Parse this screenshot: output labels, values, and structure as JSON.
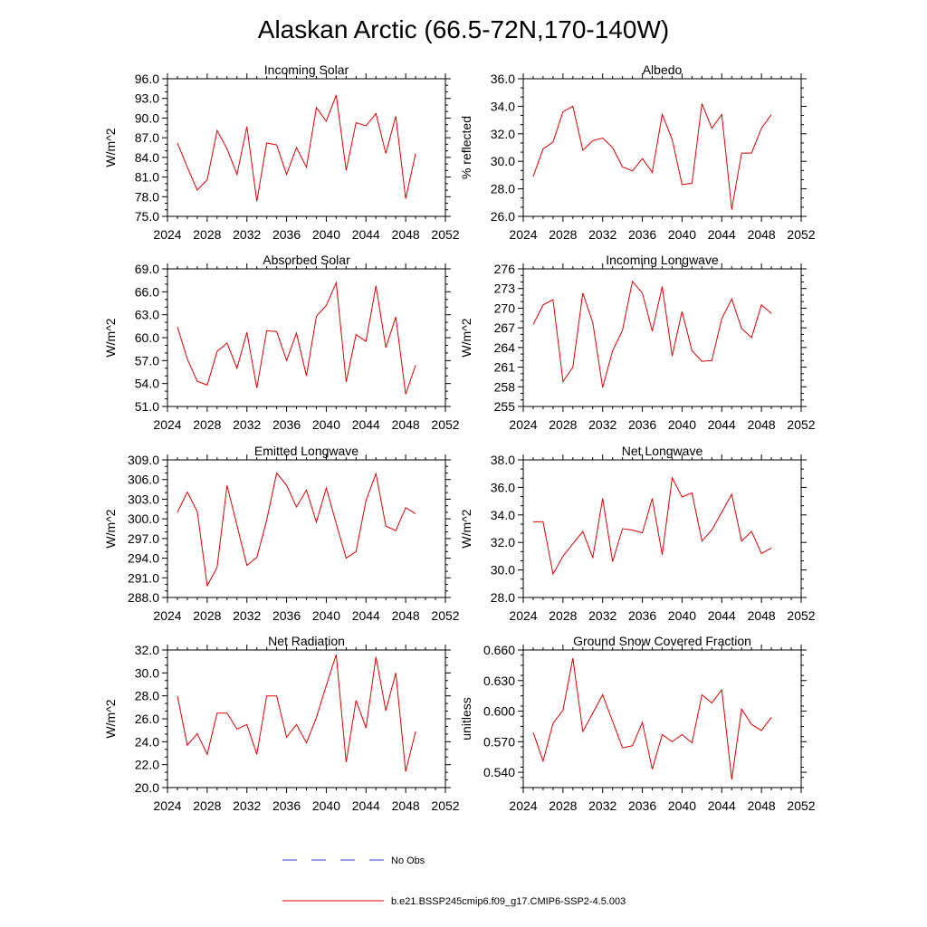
{
  "page": {
    "title": "Alaskan Arctic (66.5-72N,170-140W)"
  },
  "legend": [
    {
      "label": "No Obs",
      "color": "#3b3bcc",
      "dash": true
    },
    {
      "label": "b.e21.BSSP245cmip6.f09_g17.CMIP6-SSP2-4.5.003",
      "color": "#e00000",
      "dash": false
    }
  ],
  "chart_data": [
    {
      "type": "line",
      "title": "Incoming Solar",
      "ylabel": "W/m^2",
      "xlabel": "",
      "xlim": [
        2024,
        2052
      ],
      "xticks": [
        "2024",
        "2028",
        "2032",
        "2036",
        "2040",
        "2044",
        "2048",
        "2052"
      ],
      "ylim": [
        75.0,
        96.0
      ],
      "yticks": [
        "75.0",
        "78.0",
        "81.0",
        "84.0",
        "87.0",
        "90.0",
        "93.0",
        "96.0"
      ],
      "color": "#e00000",
      "x": [
        2025,
        2026,
        2027,
        2028,
        2029,
        2030,
        2031,
        2032,
        2033,
        2034,
        2035,
        2036,
        2037,
        2038,
        2039,
        2040,
        2041,
        2042,
        2043,
        2044,
        2045,
        2046,
        2047,
        2048,
        2049
      ],
      "y": [
        86.2,
        82.5,
        79.0,
        80.6,
        88.1,
        85.3,
        81.4,
        88.7,
        77.3,
        86.2,
        85.9,
        81.4,
        85.5,
        82.5,
        91.6,
        89.5,
        93.5,
        82.0,
        89.3,
        88.8,
        90.7,
        84.6,
        90.3,
        77.7,
        84.6
      ]
    },
    {
      "type": "line",
      "title": "Albedo",
      "ylabel": "% reflected",
      "xlabel": "",
      "xlim": [
        2024,
        2052
      ],
      "xticks": [
        "2024",
        "2028",
        "2032",
        "2036",
        "2040",
        "2044",
        "2048",
        "2052"
      ],
      "ylim": [
        26.0,
        36.0
      ],
      "yticks": [
        "26.0",
        "28.0",
        "30.0",
        "32.0",
        "34.0",
        "36.0"
      ],
      "color": "#e00000",
      "x": [
        2025,
        2026,
        2027,
        2028,
        2029,
        2030,
        2031,
        2032,
        2033,
        2034,
        2035,
        2036,
        2037,
        2038,
        2039,
        2040,
        2041,
        2042,
        2043,
        2044,
        2045,
        2046,
        2047,
        2048,
        2049
      ],
      "y": [
        28.9,
        30.9,
        31.4,
        33.6,
        34.0,
        30.8,
        31.5,
        31.7,
        31.0,
        29.6,
        29.3,
        30.2,
        29.2,
        33.4,
        31.6,
        28.3,
        28.4,
        34.2,
        32.4,
        33.4,
        26.5,
        30.6,
        30.6,
        32.4,
        33.4
      ]
    },
    {
      "type": "line",
      "title": "Absorbed Solar",
      "ylabel": "W/m^2",
      "xlabel": "",
      "xlim": [
        2024,
        2052
      ],
      "xticks": [
        "2024",
        "2028",
        "2032",
        "2036",
        "2040",
        "2044",
        "2048",
        "2052"
      ],
      "ylim": [
        51.0,
        69.0
      ],
      "yticks": [
        "51.0",
        "54.0",
        "57.0",
        "60.0",
        "63.0",
        "66.0",
        "69.0"
      ],
      "color": "#e00000",
      "x": [
        2025,
        2026,
        2027,
        2028,
        2029,
        2030,
        2031,
        2032,
        2033,
        2034,
        2035,
        2036,
        2037,
        2038,
        2039,
        2040,
        2041,
        2042,
        2043,
        2044,
        2045,
        2046,
        2047,
        2048,
        2049
      ],
      "y": [
        61.4,
        57.2,
        54.3,
        53.8,
        58.2,
        59.3,
        56.0,
        60.7,
        53.4,
        60.9,
        60.8,
        57.0,
        60.6,
        55.0,
        62.8,
        64.2,
        67.2,
        54.2,
        60.4,
        59.5,
        66.8,
        58.7,
        62.7,
        52.6,
        56.4
      ]
    },
    {
      "type": "line",
      "title": "Incoming Longwave",
      "ylabel": "W/m^2",
      "xlabel": "",
      "xlim": [
        2024,
        2052
      ],
      "xticks": [
        "2024",
        "2028",
        "2032",
        "2036",
        "2040",
        "2044",
        "2048",
        "2052"
      ],
      "ylim": [
        255,
        276
      ],
      "yticks": [
        "255",
        "258",
        "261",
        "264",
        "267",
        "270",
        "273",
        "276"
      ],
      "color": "#e00000",
      "x": [
        2025,
        2026,
        2027,
        2028,
        2029,
        2030,
        2031,
        2032,
        2033,
        2034,
        2035,
        2036,
        2037,
        2038,
        2039,
        2040,
        2041,
        2042,
        2043,
        2044,
        2045,
        2046,
        2047,
        2048,
        2049
      ],
      "y": [
        267.5,
        270.5,
        271.3,
        258.8,
        261.0,
        272.3,
        267.8,
        257.9,
        263.5,
        266.6,
        274.1,
        272.3,
        266.5,
        273.3,
        262.7,
        269.5,
        263.5,
        261.9,
        262.0,
        268.4,
        271.4,
        266.9,
        265.5,
        270.5,
        269.2
      ]
    },
    {
      "type": "line",
      "title": "Emitted Longwave",
      "ylabel": "W/m^2",
      "xlabel": "",
      "xlim": [
        2024,
        2052
      ],
      "xticks": [
        "2024",
        "2028",
        "2032",
        "2036",
        "2040",
        "2044",
        "2048",
        "2052"
      ],
      "ylim": [
        288.0,
        309.0
      ],
      "yticks": [
        "288.0",
        "291.0",
        "294.0",
        "297.0",
        "300.0",
        "303.0",
        "306.0",
        "309.0"
      ],
      "color": "#e00000",
      "x": [
        2025,
        2026,
        2027,
        2028,
        2029,
        2030,
        2031,
        2032,
        2033,
        2034,
        2035,
        2036,
        2037,
        2038,
        2039,
        2040,
        2041,
        2042,
        2043,
        2044,
        2045,
        2046,
        2047,
        2048,
        2049
      ],
      "y": [
        301.0,
        304.1,
        301.1,
        289.8,
        292.6,
        305.1,
        299.0,
        292.9,
        294.1,
        299.8,
        307.0,
        305.1,
        301.8,
        304.4,
        299.5,
        304.7,
        299.3,
        294.0,
        295.0,
        302.8,
        306.9,
        298.9,
        298.2,
        301.7,
        300.8
      ]
    },
    {
      "type": "line",
      "title": "Net Longwave",
      "ylabel": "W/m^2",
      "xlabel": "",
      "xlim": [
        2024,
        2052
      ],
      "xticks": [
        "2024",
        "2028",
        "2032",
        "2036",
        "2040",
        "2044",
        "2048",
        "2052"
      ],
      "ylim": [
        28.0,
        38.0
      ],
      "yticks": [
        "28.0",
        "30.0",
        "32.0",
        "34.0",
        "36.0",
        "38.0"
      ],
      "color": "#e00000",
      "x": [
        2025,
        2026,
        2027,
        2028,
        2029,
        2030,
        2031,
        2032,
        2033,
        2034,
        2035,
        2036,
        2037,
        2038,
        2039,
        2040,
        2041,
        2042,
        2043,
        2044,
        2045,
        2046,
        2047,
        2048,
        2049
      ],
      "y": [
        33.5,
        33.5,
        29.7,
        31.0,
        31.9,
        32.8,
        30.9,
        35.2,
        30.6,
        33.0,
        32.9,
        32.7,
        35.2,
        31.1,
        36.7,
        35.3,
        35.6,
        32.1,
        32.9,
        34.2,
        35.5,
        32.1,
        32.8,
        31.2,
        31.6
      ]
    },
    {
      "type": "line",
      "title": "Net Radiation",
      "ylabel": "W/m^2",
      "xlabel": "",
      "xlim": [
        2024,
        2052
      ],
      "xticks": [
        "2024",
        "2028",
        "2032",
        "2036",
        "2040",
        "2044",
        "2048",
        "2052"
      ],
      "ylim": [
        20.0,
        32.0
      ],
      "yticks": [
        "20.0",
        "22.0",
        "24.0",
        "26.0",
        "28.0",
        "30.0",
        "32.0"
      ],
      "color": "#e00000",
      "x": [
        2025,
        2026,
        2027,
        2028,
        2029,
        2030,
        2031,
        2032,
        2033,
        2034,
        2035,
        2036,
        2037,
        2038,
        2039,
        2040,
        2041,
        2042,
        2043,
        2044,
        2045,
        2046,
        2047,
        2048,
        2049
      ],
      "y": [
        28.0,
        23.7,
        24.7,
        22.9,
        26.5,
        26.5,
        25.1,
        25.5,
        22.9,
        28.0,
        28.0,
        24.4,
        25.5,
        23.9,
        26.1,
        28.9,
        31.6,
        22.2,
        27.6,
        25.2,
        31.4,
        26.7,
        30.0,
        21.4,
        24.9
      ]
    },
    {
      "type": "line",
      "title": "Ground Snow Covered Fraction",
      "ylabel": "unitless",
      "xlabel": "",
      "xlim": [
        2024,
        2052
      ],
      "xticks": [
        "2024",
        "2028",
        "2032",
        "2036",
        "2040",
        "2044",
        "2048",
        "2052"
      ],
      "ylim": [
        0.525,
        0.66
      ],
      "yticks": [
        "0.540",
        "0.570",
        "0.600",
        "0.630",
        "0.660"
      ],
      "color": "#e00000",
      "x": [
        2025,
        2026,
        2027,
        2028,
        2029,
        2030,
        2031,
        2032,
        2033,
        2034,
        2035,
        2036,
        2037,
        2038,
        2039,
        2040,
        2041,
        2042,
        2043,
        2044,
        2045,
        2046,
        2047,
        2048,
        2049
      ],
      "y": [
        0.579,
        0.551,
        0.588,
        0.601,
        0.652,
        0.58,
        0.598,
        0.616,
        0.59,
        0.564,
        0.566,
        0.589,
        0.543,
        0.577,
        0.57,
        0.577,
        0.569,
        0.616,
        0.608,
        0.621,
        0.533,
        0.602,
        0.587,
        0.581,
        0.594
      ]
    }
  ]
}
